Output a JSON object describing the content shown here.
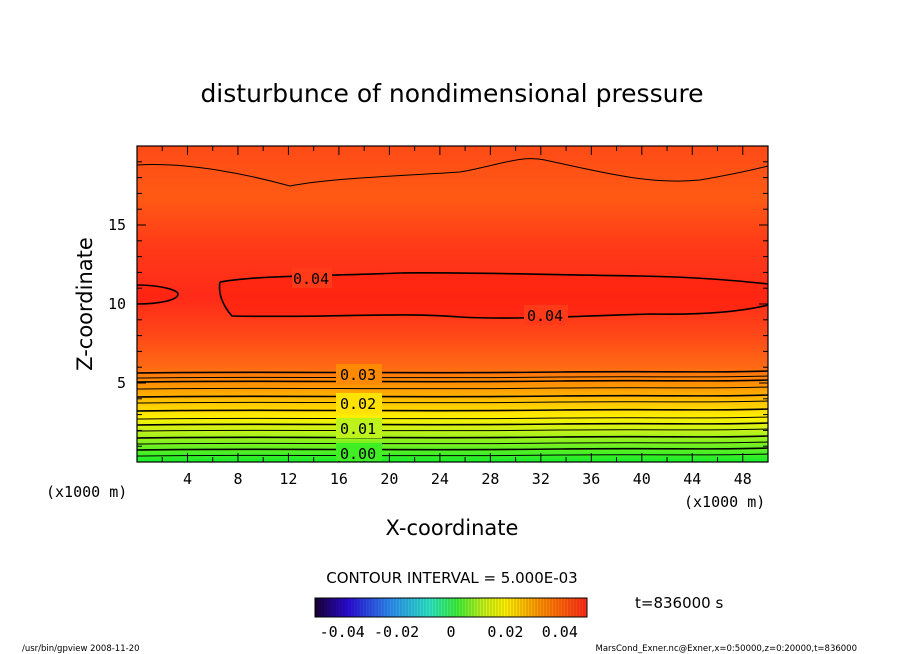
{
  "chart_data": {
    "type": "heatmap",
    "title": "disturbunce of nondimensional pressure",
    "xlabel": "X-coordinate",
    "ylabel": "Z-coordinate",
    "x_unit": "(x1000 m)",
    "y_unit": "(x1000 m)",
    "xlim": [
      0,
      50
    ],
    "ylim": [
      0,
      20
    ],
    "x_ticks": [
      4,
      8,
      12,
      16,
      20,
      24,
      28,
      32,
      36,
      40,
      44,
      48
    ],
    "y_ticks": [
      5,
      10,
      15
    ],
    "contour_interval_text": "CONTOUR INTERVAL = 5.000E-03",
    "contour_labels": [
      "0.04",
      "0.04",
      "0.03",
      "0.02",
      "0.01",
      "0.00"
    ],
    "colorbar": {
      "ticks": [
        -0.04,
        -0.02,
        0,
        0.02,
        0.04
      ],
      "tick_labels": [
        "-0.04",
        "-0.02",
        "0",
        "0.02",
        "0.04"
      ]
    },
    "time_text": "t=836000 s",
    "footer_left": "/usr/bin/gpview   2008-11-20",
    "footer_right": "MarsCond_Exner.nc@Exner,x=0:50000,z=0:20000,t=836000"
  }
}
